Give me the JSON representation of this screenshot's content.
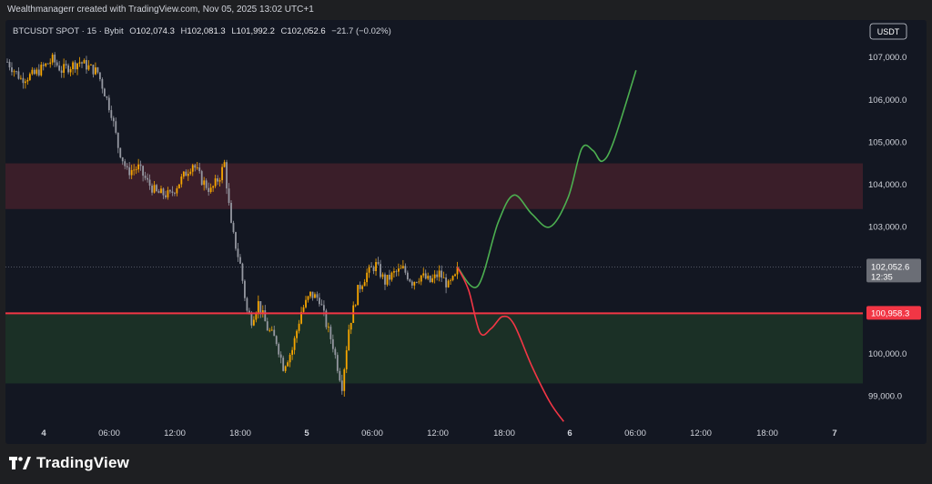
{
  "header": {
    "attribution": "Wealthmanagerr created with TradingView.com, Nov 05, 2025 13:02 UTC+1"
  },
  "legend": {
    "symbol": "BTCUSDT SPOT · 15 · Bybit",
    "o_label": "O",
    "o_value": "102,074.3",
    "h_label": "H",
    "h_value": "102,081.3",
    "l_label": "L",
    "l_value": "101,992.2",
    "c_label": "C",
    "c_value": "102,052.6",
    "change": "−21.7 (−0.02%)"
  },
  "currency_badge": "USDT",
  "brand": {
    "name": "TradingView",
    "logo_icon": "tradingview-logo-icon"
  },
  "colors": {
    "background": "#131722",
    "up_candle": "#f7a600",
    "down_candle": "#9598a1",
    "resistance_zone": "#3a1e29",
    "support_zone": "#1b3026",
    "red_line": "#f23645",
    "bull_path": "#4caf50",
    "bear_path": "#f23645",
    "price_tag": "#6b6e76"
  },
  "chart_data": {
    "type": "candlestick",
    "symbol": "BTCUSDT",
    "x_tick_labels": [
      "4",
      "06:00",
      "12:00",
      "18:00",
      "5",
      "06:00",
      "12:00",
      "18:00",
      "6",
      "06:00",
      "12:00",
      "18:00",
      "7"
    ],
    "y_tick_labels": [
      "107,000.0",
      "106,000.0",
      "105,000.0",
      "104,000.0",
      "103,000.0",
      "100,000.0",
      "99,000.0"
    ],
    "y_ticks": [
      107000,
      106000,
      105000,
      104000,
      103000,
      100000,
      99000
    ],
    "ylim": [
      98300,
      107650
    ],
    "grid": false,
    "last_price": {
      "value": 102052.6,
      "label": "102,052.6",
      "countdown": "12:35"
    },
    "horizontal_line": {
      "value": 100958.3,
      "label": "100,958.3"
    },
    "zones": [
      {
        "name": "resistance",
        "from": 103420,
        "to": 104500
      },
      {
        "name": "support",
        "from": 99300,
        "to": 100958.3
      }
    ],
    "close_anchors": [
      [
        0,
        106900
      ],
      [
        6,
        106500
      ],
      [
        12,
        106600
      ],
      [
        20,
        106950
      ],
      [
        24,
        106700
      ],
      [
        32,
        106900
      ],
      [
        40,
        106650
      ],
      [
        46,
        105700
      ],
      [
        49,
        104900
      ],
      [
        53,
        104300
      ],
      [
        58,
        104400
      ],
      [
        62,
        104050
      ],
      [
        66,
        103800
      ],
      [
        72,
        103750
      ],
      [
        78,
        104200
      ],
      [
        82,
        104500
      ],
      [
        86,
        104100
      ],
      [
        90,
        103850
      ],
      [
        94,
        104200
      ],
      [
        96,
        104500
      ],
      [
        99,
        103000
      ],
      [
        103,
        102100
      ],
      [
        106,
        101000
      ],
      [
        108,
        100800
      ],
      [
        111,
        101200
      ],
      [
        115,
        100600
      ],
      [
        119,
        100300
      ],
      [
        122,
        99700
      ],
      [
        126,
        100100
      ],
      [
        130,
        101000
      ],
      [
        134,
        101400
      ],
      [
        138,
        101300
      ],
      [
        141,
        100700
      ],
      [
        144,
        100200
      ],
      [
        146,
        99700
      ],
      [
        148,
        99250
      ],
      [
        151,
        100600
      ],
      [
        155,
        101500
      ],
      [
        159,
        101900
      ],
      [
        163,
        102100
      ],
      [
        167,
        101700
      ],
      [
        171,
        101900
      ],
      [
        175,
        102000
      ],
      [
        179,
        101700
      ],
      [
        183,
        101850
      ],
      [
        187,
        101700
      ],
      [
        191,
        101900
      ],
      [
        195,
        101600
      ],
      [
        198,
        101800
      ],
      [
        199,
        102052.6
      ]
    ],
    "projections": [
      {
        "name": "bullish",
        "points": [
          [
            199,
            102052.6
          ],
          [
            208,
            101600
          ],
          [
            217,
            103100
          ],
          [
            224,
            103750
          ],
          [
            232,
            103300
          ],
          [
            240,
            103000
          ],
          [
            248,
            103700
          ],
          [
            254,
            104850
          ],
          [
            259,
            104800
          ],
          [
            263,
            104550
          ],
          [
            268,
            105000
          ],
          [
            278,
            106700
          ]
        ]
      },
      {
        "name": "bearish",
        "points": [
          [
            199,
            102052.6
          ],
          [
            204,
            101500
          ],
          [
            209,
            100500
          ],
          [
            214,
            100600
          ],
          [
            219,
            100880
          ],
          [
            224,
            100700
          ],
          [
            232,
            99700
          ],
          [
            240,
            98850
          ],
          [
            246,
            98400
          ]
        ]
      }
    ]
  }
}
